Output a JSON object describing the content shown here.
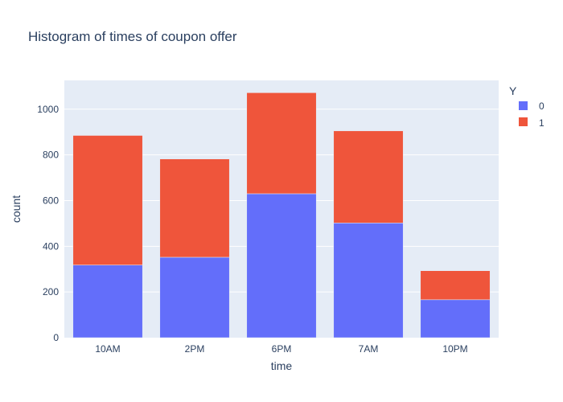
{
  "chart_data": {
    "type": "bar",
    "barmode": "stack",
    "title": "Histogram of times of coupon offer",
    "xlabel": "time",
    "ylabel": "count",
    "categories": [
      "10AM",
      "2PM",
      "6PM",
      "7AM",
      "10PM"
    ],
    "ylim": [
      0,
      1126
    ],
    "yticks": [
      0,
      200,
      400,
      600,
      800,
      1000
    ],
    "grid": true,
    "legend": {
      "title": "Y",
      "placement": "top-right",
      "entries": [
        "0",
        "1"
      ]
    },
    "series": [
      {
        "name": "0",
        "color": "#636efa",
        "values": [
          318,
          352,
          630,
          502,
          166
        ]
      },
      {
        "name": "1",
        "color": "#ef553b",
        "values": [
          567,
          430,
          442,
          403,
          127
        ]
      }
    ]
  },
  "colors": {
    "plot_background": "#e5ecf6",
    "gridline": "#ffffff",
    "text": "#2a3f5f"
  }
}
